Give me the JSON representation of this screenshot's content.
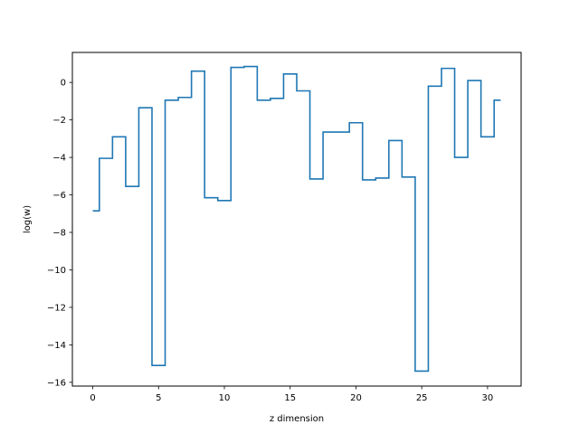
{
  "chart_data": {
    "type": "line",
    "drawstyle": "steps-mid",
    "title": "",
    "xlabel": "z dimension",
    "ylabel": "log(w)",
    "xlim": [
      -1.55,
      32.55
    ],
    "ylim": [
      -16.2,
      1.6
    ],
    "grid": false,
    "legend": "none",
    "xticks": [
      0,
      5,
      10,
      15,
      20,
      25,
      30
    ],
    "yticks": [
      -16,
      -14,
      -12,
      -10,
      -8,
      -6,
      -4,
      -2,
      0
    ],
    "series": [
      {
        "color": "#1f77b4",
        "x": [
          0,
          1,
          2,
          3,
          4,
          5,
          6,
          7,
          8,
          9,
          10,
          11,
          12,
          13,
          14,
          15,
          16,
          17,
          18,
          19,
          20,
          21,
          22,
          23,
          24,
          25,
          26,
          27,
          28,
          29,
          30,
          31
        ],
        "y": [
          -6.85,
          -4.05,
          -2.9,
          -5.55,
          -1.35,
          -15.1,
          -0.95,
          -0.8,
          0.6,
          -6.15,
          -6.3,
          0.8,
          0.85,
          -0.95,
          -0.85,
          0.45,
          -0.45,
          -5.15,
          -2.65,
          -2.65,
          -2.15,
          -5.2,
          -5.1,
          -3.1,
          -5.05,
          -15.4,
          -0.2,
          0.75,
          -4.0,
          0.1,
          -2.9,
          -0.95
        ]
      }
    ]
  }
}
